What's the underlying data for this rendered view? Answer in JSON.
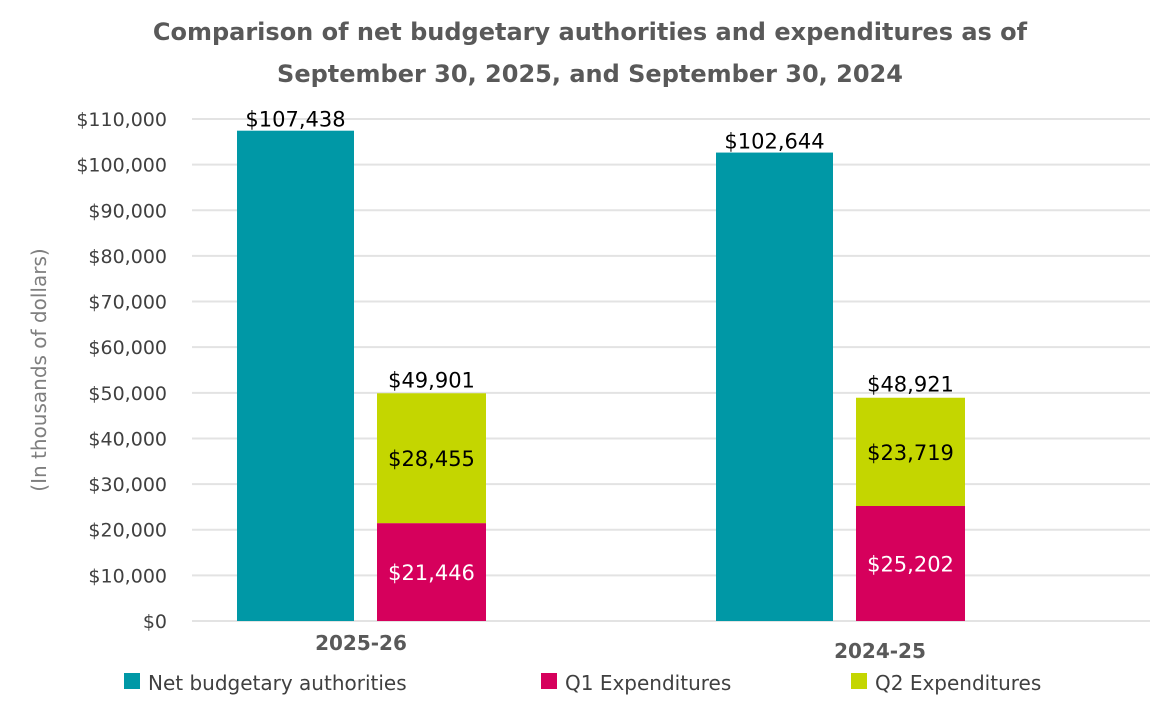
{
  "chart_data": {
    "type": "bar",
    "title": "Comparison of net budgetary authorities and expenditures as of September 30, 2025, and September 30, 2024",
    "title_lines": [
      "Comparison of net budgetary authorities and expenditures as of",
      "September 30, 2025, and September 30, 2024"
    ],
    "xlabel": "",
    "ylabel": "(In thousands of dollars)",
    "ylim": [
      0,
      110000
    ],
    "ytick_step": 10000,
    "ytick_labels": [
      "$0",
      "$10,000",
      "$20,000",
      "$30,000",
      "$40,000",
      "$50,000",
      "$60,000",
      "$70,000",
      "$80,000",
      "$90,000",
      "$100,000",
      "$110,000"
    ],
    "grid": true,
    "categories": [
      "2025-26",
      "2024-25"
    ],
    "series": [
      {
        "name": "Net budgetary authorities",
        "stack": "authorities",
        "color": "#0098A6",
        "label_color": "#000000",
        "values": [
          107438,
          102644
        ],
        "labels": [
          "$107,438",
          "$102,644"
        ]
      },
      {
        "name": "Q1 Expenditures",
        "stack": "expenditures",
        "color": "#D6005C",
        "label_color": "#ffffff",
        "values": [
          21446,
          25202
        ],
        "labels": [
          "$21,446",
          "$25,202"
        ]
      },
      {
        "name": "Q2 Expenditures",
        "stack": "expenditures",
        "color": "#C4D600",
        "label_color": "#000000",
        "values": [
          28455,
          23719
        ],
        "labels": [
          "$28,455",
          "$23,719"
        ]
      }
    ],
    "stack_totals": {
      "values": [
        49901,
        48921
      ],
      "labels": [
        "$49,901",
        "$48,921"
      ]
    },
    "legend": {
      "position": "bottom",
      "entries": [
        "Net budgetary authorities",
        "Q1 Expenditures",
        "Q2 Expenditures"
      ]
    }
  }
}
